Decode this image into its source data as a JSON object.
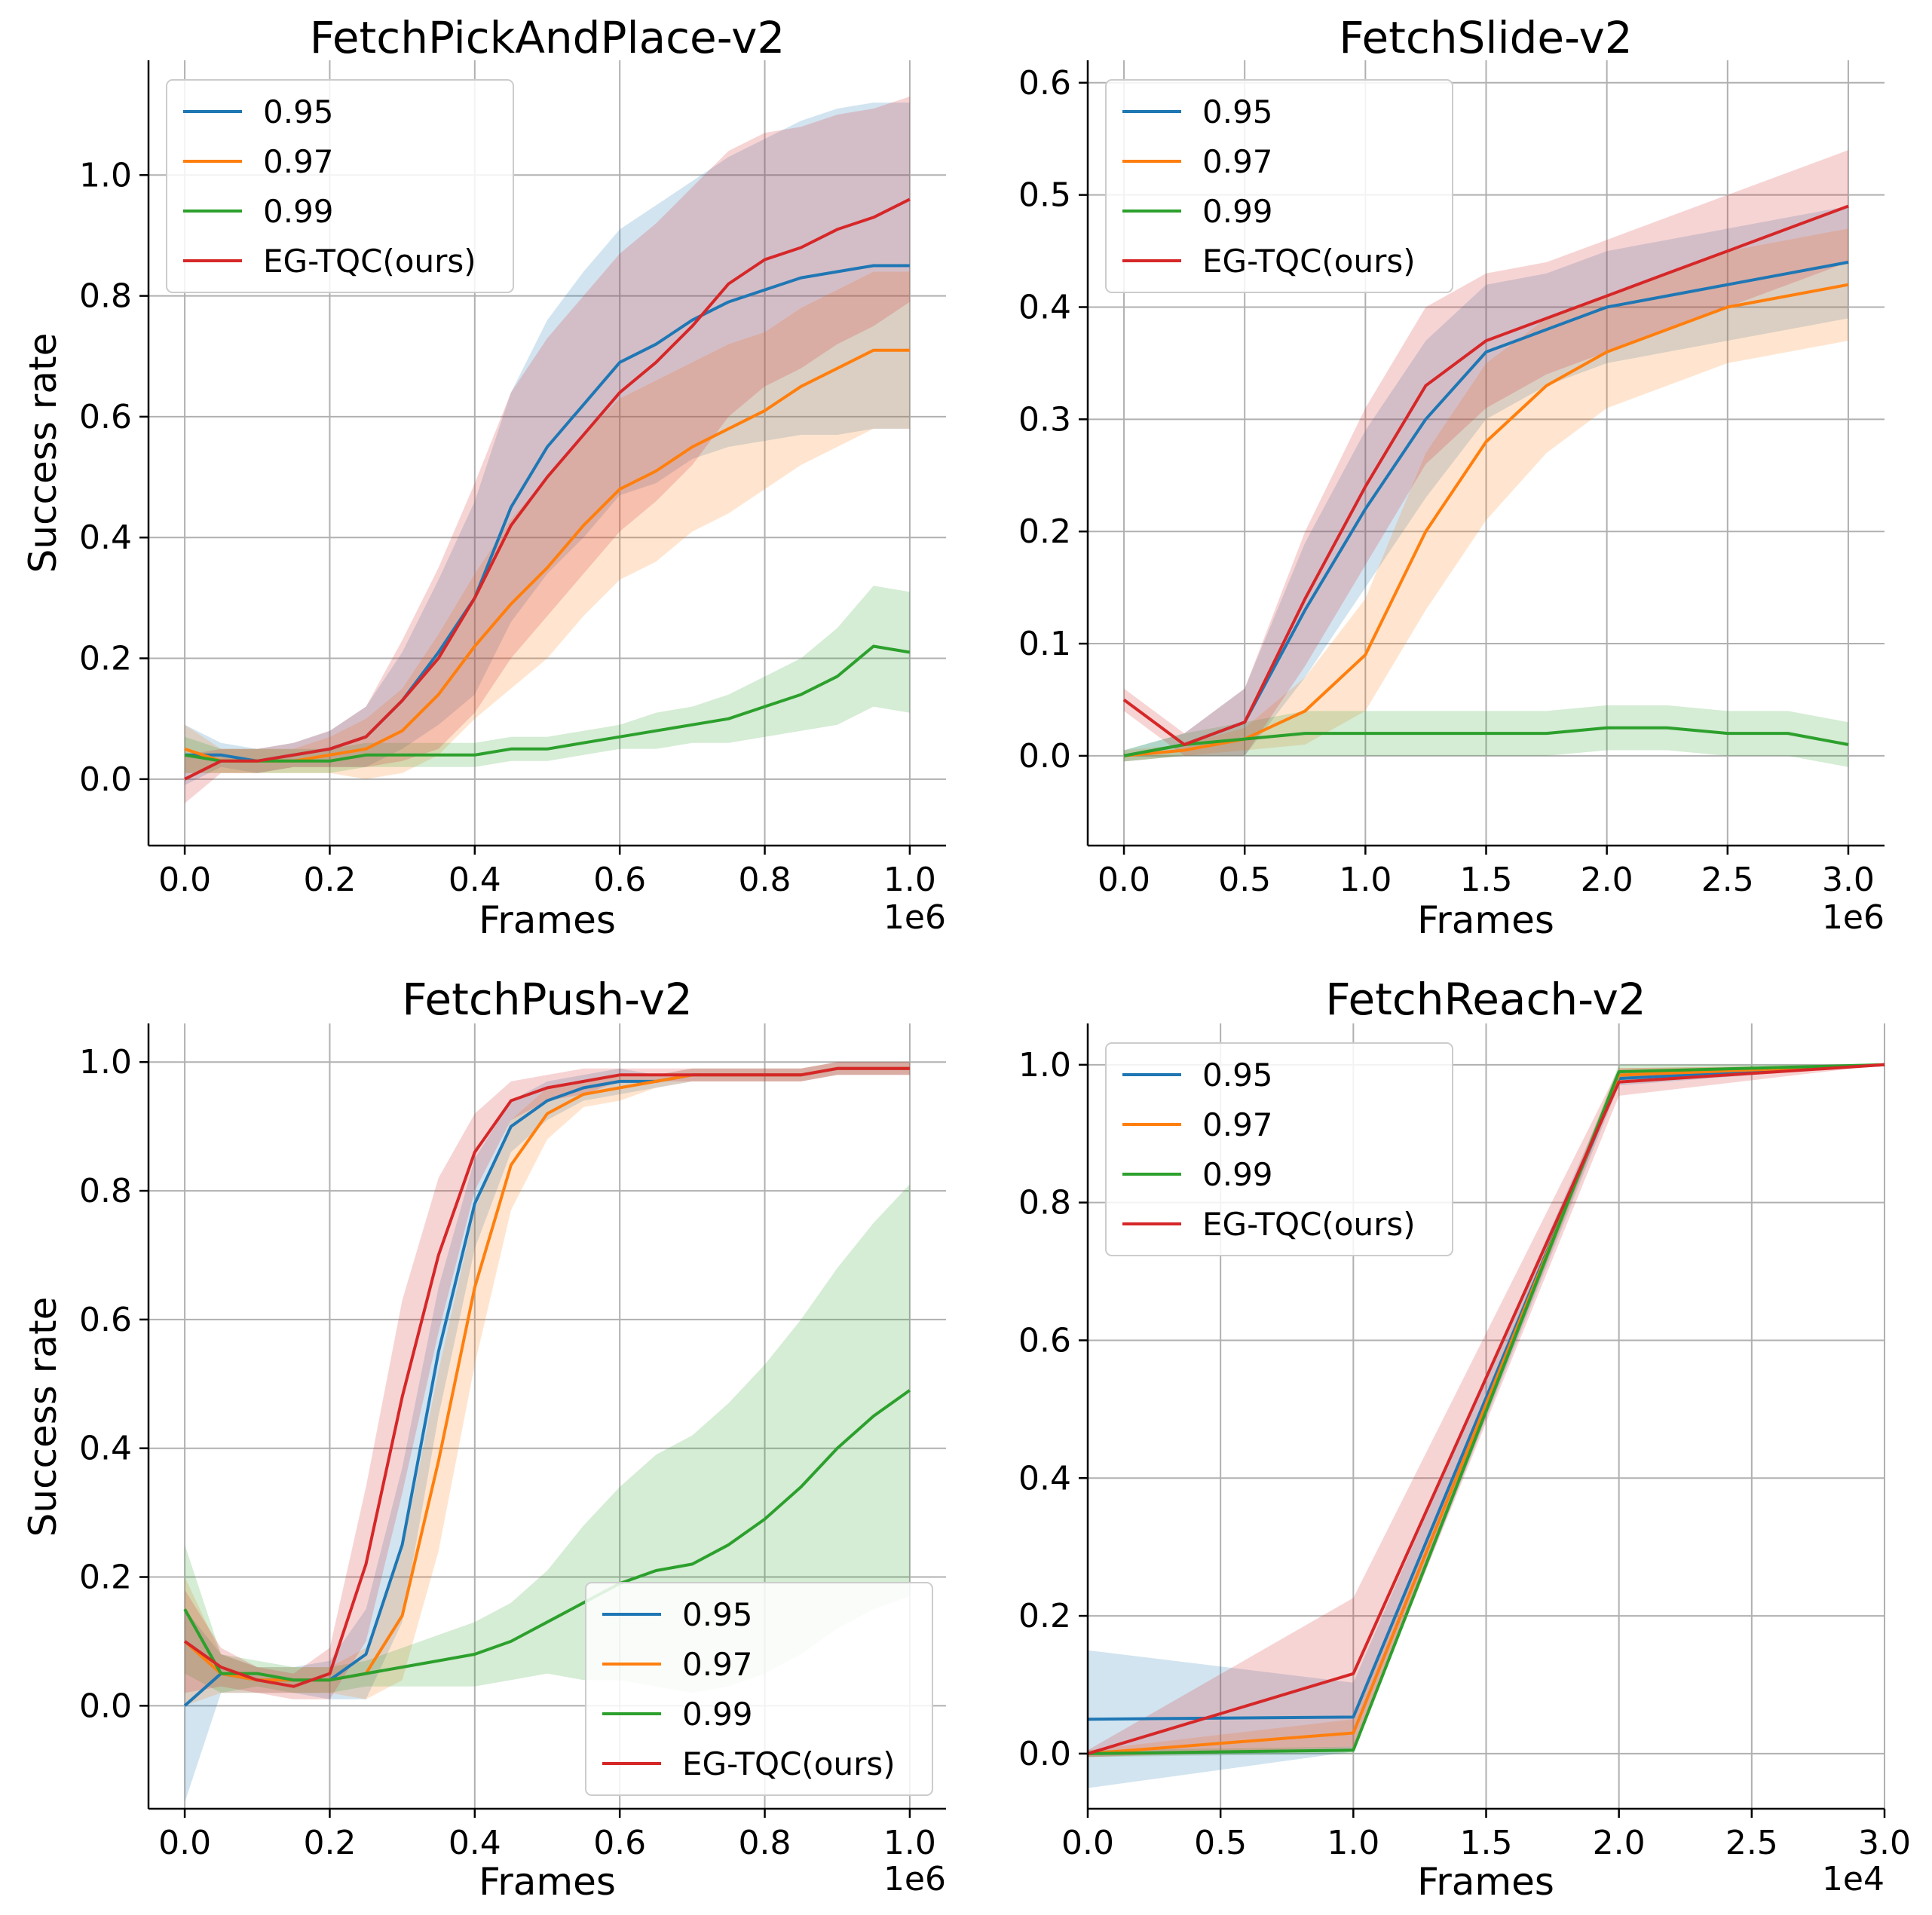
{
  "series_colors": {
    "0.95": "#1f77b4",
    "0.97": "#ff7f0e",
    "0.99": "#2ca02c",
    "EG-TQC(ours)": "#d62728"
  },
  "chart_data": [
    {
      "type": "line",
      "title": "FetchPickAndPlace-v2",
      "xlabel": "Frames",
      "ylabel": "Success rate",
      "x_offset_label": "1e6",
      "xlim": [
        -0.05,
        1.05
      ],
      "ylim": [
        -0.11,
        1.19
      ],
      "xticks": [
        0.0,
        0.2,
        0.4,
        0.6,
        0.8,
        1.0
      ],
      "xtick_labels": [
        "0.0",
        "0.2",
        "0.4",
        "0.6",
        "0.8",
        "1.0"
      ],
      "yticks": [
        0.0,
        0.2,
        0.4,
        0.6,
        0.8,
        1.0
      ],
      "ytick_labels": [
        "0.0",
        "0.2",
        "0.4",
        "0.6",
        "0.8",
        "1.0"
      ],
      "legend_loc": "upper-left",
      "grid": true,
      "series": [
        {
          "name": "0.95",
          "x": [
            0,
            0.05,
            0.1,
            0.15,
            0.2,
            0.25,
            0.3,
            0.35,
            0.4,
            0.45,
            0.5,
            0.55,
            0.6,
            0.65,
            0.7,
            0.75,
            0.8,
            0.85,
            0.9,
            0.95,
            1.0
          ],
          "values": [
            0.04,
            0.04,
            0.03,
            0.04,
            0.05,
            0.07,
            0.13,
            0.21,
            0.3,
            0.45,
            0.55,
            0.62,
            0.69,
            0.72,
            0.76,
            0.79,
            0.81,
            0.83,
            0.84,
            0.85,
            0.85
          ],
          "spread": [
            0.05,
            0.02,
            0.02,
            0.02,
            0.03,
            0.05,
            0.08,
            0.12,
            0.16,
            0.19,
            0.21,
            0.22,
            0.22,
            0.23,
            0.23,
            0.24,
            0.25,
            0.26,
            0.27,
            0.27,
            0.27
          ]
        },
        {
          "name": "0.97",
          "x": [
            0,
            0.05,
            0.1,
            0.15,
            0.2,
            0.25,
            0.3,
            0.35,
            0.4,
            0.45,
            0.5,
            0.55,
            0.6,
            0.65,
            0.7,
            0.75,
            0.8,
            0.85,
            0.9,
            0.95,
            1.0
          ],
          "values": [
            0.05,
            0.03,
            0.03,
            0.03,
            0.04,
            0.05,
            0.08,
            0.14,
            0.22,
            0.29,
            0.35,
            0.42,
            0.48,
            0.51,
            0.55,
            0.58,
            0.61,
            0.65,
            0.68,
            0.71,
            0.71
          ],
          "spread": [
            0.04,
            0.02,
            0.02,
            0.02,
            0.03,
            0.05,
            0.07,
            0.1,
            0.12,
            0.14,
            0.15,
            0.15,
            0.15,
            0.15,
            0.14,
            0.14,
            0.13,
            0.13,
            0.13,
            0.13,
            0.13
          ]
        },
        {
          "name": "0.99",
          "x": [
            0,
            0.05,
            0.1,
            0.15,
            0.2,
            0.25,
            0.3,
            0.35,
            0.4,
            0.45,
            0.5,
            0.55,
            0.6,
            0.65,
            0.7,
            0.75,
            0.8,
            0.85,
            0.9,
            0.95,
            1.0
          ],
          "values": [
            0.04,
            0.03,
            0.03,
            0.03,
            0.03,
            0.04,
            0.04,
            0.04,
            0.04,
            0.05,
            0.05,
            0.06,
            0.07,
            0.08,
            0.09,
            0.1,
            0.12,
            0.14,
            0.17,
            0.22,
            0.21
          ],
          "spread": [
            0.03,
            0.02,
            0.02,
            0.02,
            0.02,
            0.02,
            0.02,
            0.02,
            0.02,
            0.02,
            0.02,
            0.02,
            0.02,
            0.03,
            0.03,
            0.04,
            0.05,
            0.06,
            0.08,
            0.1,
            0.1
          ]
        },
        {
          "name": "EG-TQC(ours)",
          "x": [
            0,
            0.05,
            0.1,
            0.15,
            0.2,
            0.25,
            0.3,
            0.35,
            0.4,
            0.45,
            0.5,
            0.55,
            0.6,
            0.65,
            0.7,
            0.75,
            0.8,
            0.85,
            0.9,
            0.95,
            1.0
          ],
          "values": [
            0.0,
            0.03,
            0.03,
            0.04,
            0.05,
            0.07,
            0.13,
            0.2,
            0.3,
            0.42,
            0.5,
            0.57,
            0.64,
            0.69,
            0.75,
            0.82,
            0.86,
            0.88,
            0.91,
            0.93,
            0.96
          ],
          "spread": [
            0.04,
            0.02,
            0.02,
            0.02,
            0.03,
            0.05,
            0.1,
            0.15,
            0.19,
            0.22,
            0.23,
            0.23,
            0.23,
            0.23,
            0.23,
            0.22,
            0.21,
            0.2,
            0.19,
            0.18,
            0.17
          ]
        }
      ]
    },
    {
      "type": "line",
      "title": "FetchSlide-v2",
      "xlabel": "Frames",
      "ylabel": "",
      "x_offset_label": "1e6",
      "xlim": [
        -0.15,
        3.15
      ],
      "ylim": [
        -0.08,
        0.62
      ],
      "xticks": [
        0.0,
        0.5,
        1.0,
        1.5,
        2.0,
        2.5,
        3.0
      ],
      "xtick_labels": [
        "0.0",
        "0.5",
        "1.0",
        "1.5",
        "2.0",
        "2.5",
        "3.0"
      ],
      "yticks": [
        0.0,
        0.1,
        0.2,
        0.3,
        0.4,
        0.5,
        0.6
      ],
      "ytick_labels": [
        "0.0",
        "0.1",
        "0.2",
        "0.3",
        "0.4",
        "0.5",
        "0.6"
      ],
      "legend_loc": "upper-left",
      "grid": true,
      "series": [
        {
          "name": "0.95",
          "x": [
            0,
            0.25,
            0.5,
            0.75,
            1.0,
            1.25,
            1.5,
            1.75,
            2.0,
            2.25,
            2.5,
            2.75,
            3.0
          ],
          "values": [
            0.0,
            0.01,
            0.03,
            0.13,
            0.22,
            0.3,
            0.36,
            0.38,
            0.4,
            0.41,
            0.42,
            0.43,
            0.44
          ],
          "spread": [
            0.005,
            0.01,
            0.03,
            0.06,
            0.07,
            0.07,
            0.06,
            0.05,
            0.05,
            0.05,
            0.05,
            0.05,
            0.05
          ]
        },
        {
          "name": "0.97",
          "x": [
            0,
            0.25,
            0.5,
            0.75,
            1.0,
            1.25,
            1.5,
            1.75,
            2.0,
            2.25,
            2.5,
            2.75,
            3.0
          ],
          "values": [
            0.0,
            0.005,
            0.015,
            0.04,
            0.09,
            0.2,
            0.28,
            0.33,
            0.36,
            0.38,
            0.4,
            0.41,
            0.42
          ],
          "spread": [
            0.005,
            0.005,
            0.01,
            0.03,
            0.05,
            0.07,
            0.07,
            0.06,
            0.05,
            0.05,
            0.05,
            0.05,
            0.05
          ]
        },
        {
          "name": "0.99",
          "x": [
            0,
            0.25,
            0.5,
            0.75,
            1.0,
            1.25,
            1.5,
            1.75,
            2.0,
            2.25,
            2.5,
            2.75,
            3.0
          ],
          "values": [
            0.0,
            0.01,
            0.015,
            0.02,
            0.02,
            0.02,
            0.02,
            0.02,
            0.025,
            0.025,
            0.02,
            0.02,
            0.01
          ],
          "spread": [
            0.005,
            0.01,
            0.015,
            0.02,
            0.02,
            0.02,
            0.02,
            0.02,
            0.02,
            0.02,
            0.02,
            0.02,
            0.02
          ]
        },
        {
          "name": "EG-TQC(ours)",
          "x": [
            0,
            0.25,
            0.5,
            0.75,
            1.0,
            1.25,
            1.5,
            1.75,
            2.0,
            2.25,
            2.5,
            2.75,
            3.0
          ],
          "values": [
            0.05,
            0.01,
            0.03,
            0.14,
            0.24,
            0.33,
            0.37,
            0.39,
            0.41,
            0.43,
            0.45,
            0.47,
            0.49
          ],
          "spread": [
            0.01,
            0.01,
            0.03,
            0.06,
            0.07,
            0.07,
            0.06,
            0.05,
            0.05,
            0.05,
            0.05,
            0.05,
            0.05
          ]
        }
      ]
    },
    {
      "type": "line",
      "title": "FetchPush-v2",
      "xlabel": "Frames",
      "ylabel": "Success rate",
      "x_offset_label": "1e6",
      "xlim": [
        -0.05,
        1.05
      ],
      "ylim": [
        -0.16,
        1.06
      ],
      "xticks": [
        0.0,
        0.2,
        0.4,
        0.6,
        0.8,
        1.0
      ],
      "xtick_labels": [
        "0.0",
        "0.2",
        "0.4",
        "0.6",
        "0.8",
        "1.0"
      ],
      "yticks": [
        0.0,
        0.2,
        0.4,
        0.6,
        0.8,
        1.0
      ],
      "ytick_labels": [
        "0.0",
        "0.2",
        "0.4",
        "0.6",
        "0.8",
        "1.0"
      ],
      "legend_loc": "lower-right",
      "grid": true,
      "series": [
        {
          "name": "0.95",
          "x": [
            0,
            0.05,
            0.1,
            0.15,
            0.2,
            0.25,
            0.3,
            0.35,
            0.4,
            0.45,
            0.5,
            0.55,
            0.6,
            0.65,
            0.7,
            0.75,
            0.8,
            0.85,
            0.9,
            0.95,
            1.0
          ],
          "values": [
            0.0,
            0.05,
            0.04,
            0.04,
            0.04,
            0.08,
            0.25,
            0.55,
            0.78,
            0.9,
            0.94,
            0.96,
            0.97,
            0.97,
            0.98,
            0.98,
            0.98,
            0.98,
            0.99,
            0.99,
            0.99
          ],
          "spread": [
            0.15,
            0.03,
            0.02,
            0.02,
            0.03,
            0.07,
            0.12,
            0.1,
            0.07,
            0.04,
            0.03,
            0.02,
            0.02,
            0.01,
            0.01,
            0.01,
            0.01,
            0.01,
            0.01,
            0.01,
            0.01
          ]
        },
        {
          "name": "0.97",
          "x": [
            0,
            0.05,
            0.1,
            0.15,
            0.2,
            0.25,
            0.3,
            0.35,
            0.4,
            0.45,
            0.5,
            0.55,
            0.6,
            0.65,
            0.7,
            0.75,
            0.8,
            0.85,
            0.9,
            0.95,
            1.0
          ],
          "values": [
            0.1,
            0.05,
            0.04,
            0.04,
            0.04,
            0.05,
            0.14,
            0.38,
            0.65,
            0.84,
            0.92,
            0.95,
            0.96,
            0.97,
            0.98,
            0.98,
            0.98,
            0.98,
            0.99,
            0.99,
            0.99
          ],
          "spread": [
            0.1,
            0.03,
            0.02,
            0.02,
            0.02,
            0.04,
            0.1,
            0.14,
            0.12,
            0.07,
            0.04,
            0.02,
            0.02,
            0.01,
            0.01,
            0.01,
            0.01,
            0.01,
            0.01,
            0.01,
            0.01
          ]
        },
        {
          "name": "0.99",
          "x": [
            0,
            0.05,
            0.1,
            0.15,
            0.2,
            0.25,
            0.3,
            0.35,
            0.4,
            0.45,
            0.5,
            0.55,
            0.6,
            0.65,
            0.7,
            0.75,
            0.8,
            0.85,
            0.9,
            0.95,
            1.0
          ],
          "values": [
            0.15,
            0.05,
            0.05,
            0.04,
            0.04,
            0.05,
            0.06,
            0.07,
            0.08,
            0.1,
            0.13,
            0.16,
            0.19,
            0.21,
            0.22,
            0.25,
            0.29,
            0.34,
            0.4,
            0.45,
            0.49
          ],
          "spread": [
            0.1,
            0.03,
            0.02,
            0.02,
            0.02,
            0.02,
            0.03,
            0.04,
            0.05,
            0.06,
            0.08,
            0.12,
            0.15,
            0.18,
            0.2,
            0.22,
            0.24,
            0.26,
            0.28,
            0.3,
            0.32
          ]
        },
        {
          "name": "EG-TQC(ours)",
          "x": [
            0,
            0.05,
            0.1,
            0.15,
            0.2,
            0.25,
            0.3,
            0.35,
            0.4,
            0.45,
            0.5,
            0.55,
            0.6,
            0.65,
            0.7,
            0.75,
            0.8,
            0.85,
            0.9,
            0.95,
            1.0
          ],
          "values": [
            0.1,
            0.06,
            0.04,
            0.03,
            0.05,
            0.22,
            0.48,
            0.7,
            0.86,
            0.94,
            0.96,
            0.97,
            0.98,
            0.98,
            0.98,
            0.98,
            0.98,
            0.98,
            0.99,
            0.99,
            0.99
          ],
          "spread": [
            0.08,
            0.03,
            0.02,
            0.02,
            0.04,
            0.12,
            0.15,
            0.12,
            0.06,
            0.03,
            0.02,
            0.02,
            0.01,
            0.01,
            0.01,
            0.01,
            0.01,
            0.01,
            0.01,
            0.01,
            0.01
          ]
        }
      ]
    },
    {
      "type": "line",
      "title": "FetchReach-v2",
      "xlabel": "Frames",
      "ylabel": "",
      "x_offset_label": "1e4",
      "xlim": [
        0.0,
        3.0
      ],
      "ylim": [
        -0.08,
        1.06
      ],
      "xticks": [
        0.0,
        0.5,
        1.0,
        1.5,
        2.0,
        2.5,
        3.0
      ],
      "xtick_labels": [
        "0.0",
        "0.5",
        "1.0",
        "1.5",
        "2.0",
        "2.5",
        "3.0"
      ],
      "yticks": [
        0.0,
        0.2,
        0.4,
        0.6,
        0.8,
        1.0
      ],
      "ytick_labels": [
        "0.0",
        "0.2",
        "0.4",
        "0.6",
        "0.8",
        "1.0"
      ],
      "legend_loc": "upper-left",
      "grid": true,
      "series": [
        {
          "name": "0.95",
          "x": [
            0,
            1,
            2,
            3
          ],
          "values": [
            0.05,
            0.053,
            0.98,
            1.0
          ],
          "spread": [
            0.1,
            0.05,
            0.01,
            0.0
          ]
        },
        {
          "name": "0.97",
          "x": [
            0,
            1,
            2,
            3
          ],
          "values": [
            0.0,
            0.03,
            0.985,
            1.0
          ],
          "spread": [
            0.005,
            0.02,
            0.01,
            0.0
          ]
        },
        {
          "name": "0.99",
          "x": [
            0,
            1,
            2,
            3
          ],
          "values": [
            0.0,
            0.005,
            0.99,
            1.0
          ],
          "spread": [
            0.005,
            0.005,
            0.01,
            0.0
          ]
        },
        {
          "name": "EG-TQC(ours)",
          "x": [
            0,
            1,
            2,
            3
          ],
          "values": [
            0.0,
            0.116,
            0.975,
            1.0
          ],
          "spread": [
            0.005,
            0.11,
            0.02,
            0.0
          ]
        }
      ]
    }
  ]
}
